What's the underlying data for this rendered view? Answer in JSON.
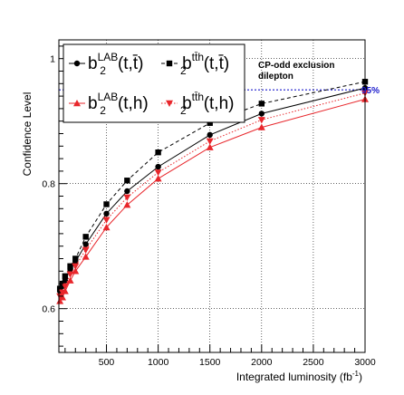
{
  "chart_data": {
    "type": "line",
    "title": "",
    "xlabel": "Integrated luminosity (fb",
    "xlabel_sup": "-1",
    "xlabel_close": ")",
    "ylabel": "Confidence Level",
    "xlim": [
      40,
      3000
    ],
    "ylim": [
      0.53,
      1.03
    ],
    "x_ticks": [
      500,
      1000,
      1500,
      2000,
      2500,
      3000
    ],
    "x_tick_labels": [
      "500",
      "1000",
      "1500",
      "2000",
      "2500",
      "3000"
    ],
    "y_ticks": [
      0.6,
      0.8,
      1.0
    ],
    "y_tick_labels": [
      "0.6",
      "0.8",
      "1"
    ],
    "grid": true,
    "annotation": [
      "CP-odd exclusion",
      "dilepton"
    ],
    "reference_line": {
      "y": 0.95,
      "label": "95%",
      "color": "#1a1acc"
    },
    "legend_position": "top-left",
    "legend": [
      {
        "base": "b",
        "sub": "2",
        "sup": "LAB",
        "args": "(t,t̄)"
      },
      {
        "base": "b",
        "sub": "2",
        "sup": "tt̄h",
        "args": "(t,t̄)"
      },
      {
        "base": "b",
        "sub": "2",
        "sup": "LAB",
        "args": "(t,h)"
      },
      {
        "base": "b",
        "sub": "2",
        "sup": "tt̄h",
        "args": "(t,h)"
      }
    ],
    "x": [
      50,
      75,
      100,
      150,
      200,
      300,
      500,
      700,
      1000,
      1500,
      2000,
      3000
    ],
    "series": [
      {
        "marker": "circle",
        "color": "#000000",
        "dash": "solid",
        "values": [
          0.628,
          0.636,
          0.645,
          0.663,
          0.675,
          0.703,
          0.752,
          0.788,
          0.827,
          0.878,
          0.912,
          0.953
        ]
      },
      {
        "marker": "square",
        "color": "#000000",
        "dash": "dashed",
        "values": [
          0.632,
          0.64,
          0.652,
          0.668,
          0.68,
          0.715,
          0.767,
          0.805,
          0.85,
          0.897,
          0.928,
          0.963
        ]
      },
      {
        "marker": "triangle-up",
        "color": "#e8262b",
        "dash": "solid",
        "values": [
          0.612,
          0.618,
          0.628,
          0.645,
          0.66,
          0.683,
          0.73,
          0.766,
          0.808,
          0.858,
          0.89,
          0.935
        ]
      },
      {
        "marker": "triangle-down",
        "color": "#e8262b",
        "dash": "dotted",
        "values": [
          0.62,
          0.626,
          0.636,
          0.655,
          0.668,
          0.694,
          0.742,
          0.778,
          0.818,
          0.868,
          0.902,
          0.945
        ]
      }
    ]
  }
}
